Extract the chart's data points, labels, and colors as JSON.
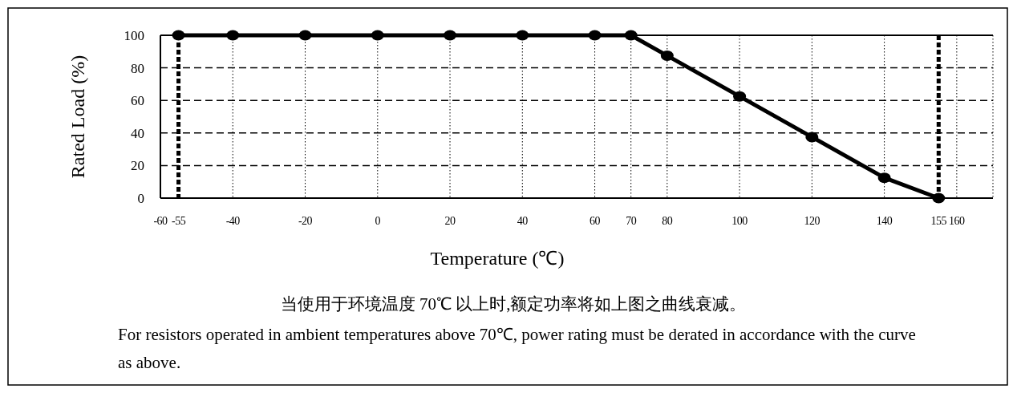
{
  "chart_data": {
    "type": "line",
    "xlabel": "Temperature (℃)",
    "ylabel": "Rated Load (%)",
    "x": [
      -55,
      -40,
      -20,
      0,
      20,
      40,
      60,
      70,
      80,
      100,
      120,
      140,
      155
    ],
    "series": [
      {
        "color": "#000000",
        "values": [
          100,
          100,
          100,
          100,
          100,
          100,
          100,
          100,
          87.5,
          62.5,
          37.5,
          12.5,
          0
        ]
      }
    ],
    "xlim": [
      -60,
      170
    ],
    "ylim": [
      0,
      100
    ],
    "xticks": [
      -60,
      -40,
      -20,
      0,
      20,
      40,
      60,
      70,
      80,
      100,
      120,
      140,
      160
    ],
    "yticks": [
      0,
      20,
      40,
      60,
      80,
      100
    ],
    "ref_lines": [
      {
        "axis": "x",
        "value": -55,
        "label": "-55",
        "color": "#000000",
        "line_style": "dotted"
      },
      {
        "axis": "x",
        "value": 155,
        "label": "155",
        "color": "#000000",
        "line_style": "dotted"
      }
    ],
    "grid": true,
    "marker": "circle",
    "line_style": "solid",
    "annotations": [
      "当使用于环境温度 70℃ 以上时,额定功率将如上图之曲线衰减。",
      "For resistors operated in ambient temperatures above 70℃, power rating must be derated in accordance with the curve as above."
    ]
  }
}
